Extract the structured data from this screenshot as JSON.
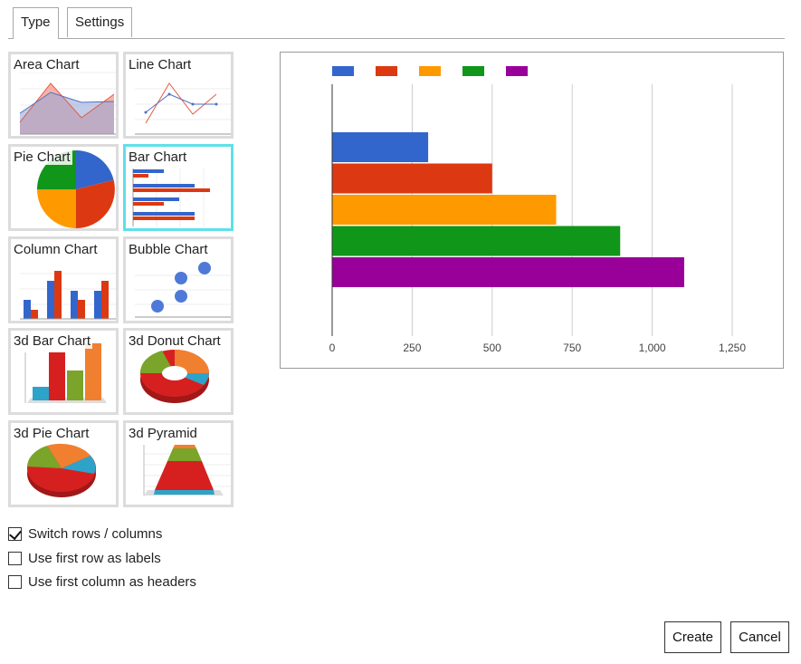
{
  "tabs": [
    {
      "label": "Type",
      "active": true
    },
    {
      "label": "Settings",
      "active": false
    }
  ],
  "gallery": [
    {
      "label": "Area Chart"
    },
    {
      "label": "Line Chart"
    },
    {
      "label": "Pie Chart"
    },
    {
      "label": "Bar Chart",
      "selected": true
    },
    {
      "label": "Column Chart"
    },
    {
      "label": "Bubble Chart"
    },
    {
      "label": "3d Bar Chart"
    },
    {
      "label": "3d Donut Chart"
    },
    {
      "label": "3d Pie Chart"
    },
    {
      "label": "3d Pyramid"
    }
  ],
  "options": {
    "switch_rows": {
      "label": "Switch rows / columns",
      "checked": true
    },
    "first_row_labels": {
      "label": "Use first row as labels",
      "checked": false
    },
    "first_col_headers": {
      "label": "Use first column as headers",
      "checked": false
    }
  },
  "buttons": {
    "create": "Create",
    "cancel": "Cancel"
  },
  "chart_data": {
    "type": "bar",
    "orientation": "horizontal",
    "series": [
      {
        "values": [
          300
        ],
        "color": "#3366cc"
      },
      {
        "values": [
          500
        ],
        "color": "#dc3912"
      },
      {
        "values": [
          700
        ],
        "color": "#ff9900"
      },
      {
        "values": [
          900
        ],
        "color": "#109618"
      },
      {
        "values": [
          1100
        ],
        "color": "#990099"
      }
    ],
    "x_ticks": [
      0,
      250,
      500,
      750,
      1000,
      1250
    ],
    "x_tick_labels": [
      "0",
      "250",
      "500",
      "750",
      "1,000",
      "1,250"
    ],
    "xlim": [
      0,
      1250
    ],
    "legend": "top-left",
    "grid": true
  }
}
